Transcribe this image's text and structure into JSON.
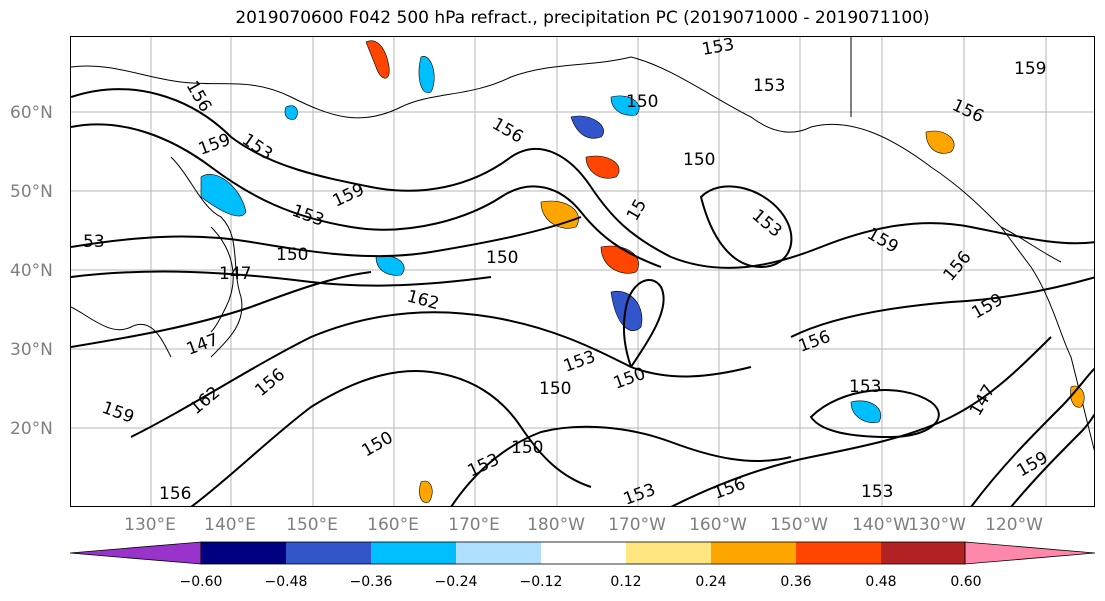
{
  "title": "2019070600 F042 500 hPa refract., precipitation PC (2019071000 - 2019071100)",
  "lat_labels": [
    "60°N",
    "50°N",
    "40°N",
    "30°N",
    "20°N"
  ],
  "lon_labels": [
    "130°E",
    "140°E",
    "150°E",
    "160°E",
    "170°E",
    "180°W",
    "170°W",
    "160°W",
    "150°W",
    "140°W",
    "130°W",
    "120°W"
  ],
  "contour_labels": [
    "156",
    "153",
    "159",
    "150",
    "147",
    "162",
    "53",
    "15"
  ],
  "colorbar": {
    "ticks": [
      "−0.60",
      "−0.48",
      "−0.36",
      "−0.24",
      "−0.12",
      "0.12",
      "0.24",
      "0.36",
      "0.48",
      "0.60"
    ],
    "colors": [
      "#9933cc",
      "#000080",
      "#3355cc",
      "#00bfff",
      "#b0e0ff",
      "#ffffff",
      "#ffe680",
      "#ffa500",
      "#ff4500",
      "#b22222",
      "#ff88aa"
    ]
  },
  "precip_colors": {
    "neg_light": "#b0e0ff",
    "neg_mid": "#00bfff",
    "neg_dark": "#3355cc",
    "pos_light": "#ffe680",
    "pos_mid": "#ffa500",
    "pos_dark": "#ff4500"
  }
}
